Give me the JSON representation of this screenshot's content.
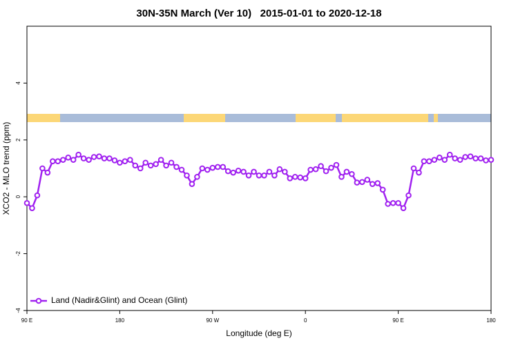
{
  "chart_data": {
    "type": "line",
    "title": "30N-35N March (Ver 10)   2015-01-01 to 2020-12-18",
    "xlabel": "Longitude (deg E)",
    "ylabel": "XCO2 - MLO trend (ppm)",
    "xlim": [
      90,
      540
    ],
    "ylim": [
      -4,
      6
    ],
    "xticks": [
      {
        "value": 90,
        "label": "90 E"
      },
      {
        "value": 180,
        "label": "180"
      },
      {
        "value": 270,
        "label": "90 W"
      },
      {
        "value": 360,
        "label": "0"
      },
      {
        "value": 450,
        "label": "90 E"
      },
      {
        "value": 540,
        "label": "180"
      }
    ],
    "yticks": [
      -4,
      -2,
      0,
      2,
      4
    ],
    "legend": "lower left",
    "x": [
      90,
      95,
      100,
      105,
      110,
      115,
      120,
      125,
      130,
      135,
      140,
      145,
      150,
      155,
      160,
      165,
      170,
      175,
      180,
      185,
      190,
      195,
      200,
      205,
      210,
      215,
      220,
      225,
      230,
      235,
      240,
      245,
      250,
      255,
      260,
      265,
      270,
      275,
      280,
      285,
      290,
      295,
      300,
      305,
      310,
      315,
      320,
      325,
      330,
      335,
      340,
      345,
      350,
      355,
      360,
      365,
      370,
      375,
      380,
      385,
      390,
      395,
      400,
      405,
      410,
      415,
      420,
      425,
      430,
      435,
      440,
      445,
      450,
      455,
      460,
      465,
      470,
      475,
      480,
      485,
      490,
      495,
      500,
      505,
      510,
      515,
      520,
      525,
      530,
      535,
      540
    ],
    "series": [
      {
        "name": "Land (Nadir&Glint) and Ocean (Glint)",
        "color": "#a020f0",
        "values": [
          -0.22,
          -0.4,
          0.05,
          1.0,
          0.85,
          1.25,
          1.25,
          1.3,
          1.38,
          1.3,
          1.48,
          1.35,
          1.3,
          1.4,
          1.42,
          1.35,
          1.35,
          1.28,
          1.2,
          1.25,
          1.3,
          1.1,
          1.0,
          1.2,
          1.1,
          1.15,
          1.3,
          1.1,
          1.2,
          1.05,
          0.95,
          0.75,
          0.45,
          0.7,
          1.0,
          0.95,
          1.02,
          1.05,
          1.05,
          0.9,
          0.85,
          0.92,
          0.88,
          0.75,
          0.88,
          0.75,
          0.75,
          0.88,
          0.75,
          0.97,
          0.88,
          0.65,
          0.7,
          0.68,
          0.65,
          0.95,
          0.97,
          1.08,
          0.9,
          1.02,
          1.12,
          0.7,
          0.88,
          0.8,
          0.5,
          0.52,
          0.6,
          0.45,
          0.48,
          0.25,
          -0.25,
          -0.22,
          -0.22,
          -0.4,
          0.05,
          1.0,
          0.85,
          1.25,
          1.25,
          1.3,
          1.38,
          1.3,
          1.48,
          1.35,
          1.3,
          1.4,
          1.42,
          1.35,
          1.35,
          1.28,
          1.3
        ]
      }
    ]
  }
}
